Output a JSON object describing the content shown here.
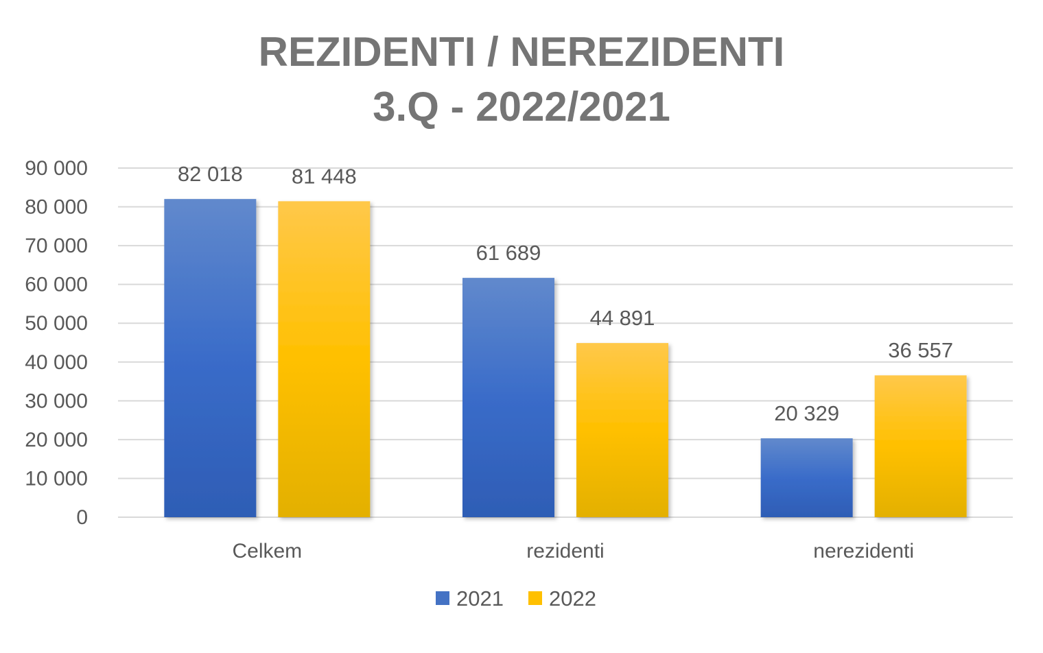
{
  "chart_data": {
    "type": "bar",
    "title_lines": [
      "REZIDENTI / NEREZIDENTI",
      "3.Q - 2022/2021"
    ],
    "categories": [
      "Celkem",
      "rezidenti",
      "nerezidenti"
    ],
    "series": [
      {
        "name": "2021",
        "values": [
          82018,
          61689,
          20329
        ],
        "labels": [
          "82 018",
          "61 689",
          "20 329"
        ],
        "color": "#4472C4"
      },
      {
        "name": "2022",
        "values": [
          81448,
          44891,
          36557
        ],
        "labels": [
          "81 448",
          "44 891",
          "36 557"
        ],
        "color": "#FFC000"
      }
    ],
    "ylim": [
      0,
      90000
    ],
    "y_ticks": [
      0,
      10000,
      20000,
      30000,
      40000,
      50000,
      60000,
      70000,
      80000,
      90000
    ],
    "y_tick_labels": [
      "0",
      "10 000",
      "20 000",
      "30 000",
      "40 000",
      "50 000",
      "60 000",
      "70 000",
      "80 000",
      "90 000"
    ],
    "grid": true,
    "legend_position": "bottom"
  }
}
